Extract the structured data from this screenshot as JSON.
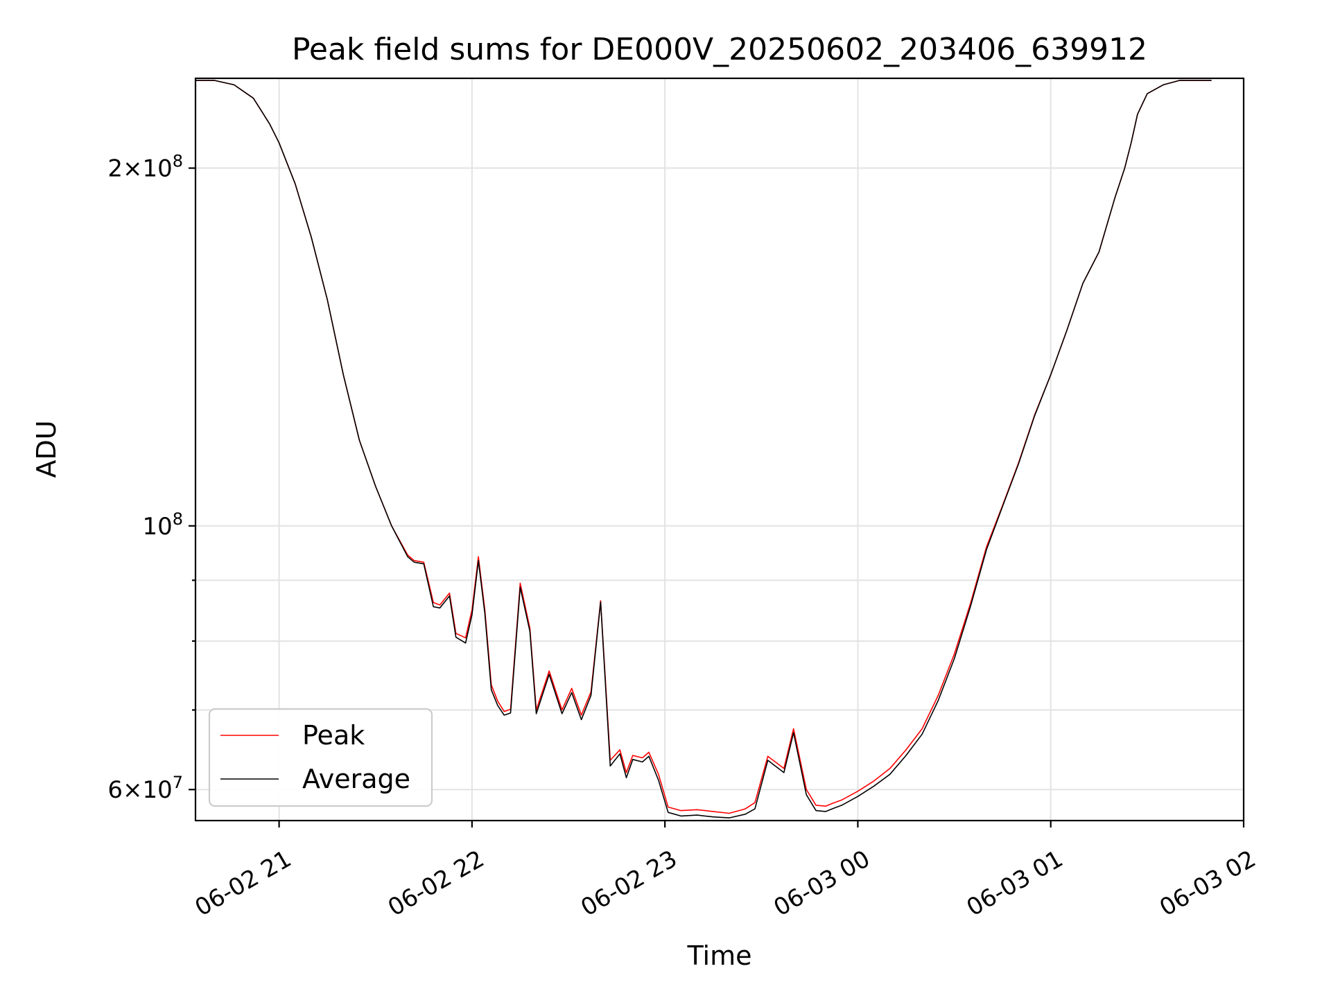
{
  "chart_data": {
    "type": "line",
    "title": "Peak field sums for DE000V_20250602_203406_639912",
    "xlabel": "Time",
    "ylabel": "ADU",
    "yscale": "log",
    "grid": true,
    "legend_position": "lower-left",
    "xlim": [
      "06-02 20:34",
      "06-03 02:00"
    ],
    "ylim": [
      56500000,
      238000000
    ],
    "x_ticks": [
      {
        "value": "06-02 21:00",
        "label": "06-02 21"
      },
      {
        "value": "06-02 22:00",
        "label": "06-02 22"
      },
      {
        "value": "06-02 23:00",
        "label": "06-02 23"
      },
      {
        "value": "06-03 00:00",
        "label": "06-03 00"
      },
      {
        "value": "06-03 01:00",
        "label": "06-03 01"
      },
      {
        "value": "06-03 02:00",
        "label": "06-03 02"
      }
    ],
    "y_ticks_major": [
      {
        "value": 100000000,
        "base": "10",
        "exp": "8",
        "mant": ""
      },
      {
        "value": 200000000,
        "base": "10",
        "exp": "8",
        "mant": "2"
      },
      {
        "value": 60000000,
        "base": "10",
        "exp": "7",
        "mant": "6"
      }
    ],
    "y_ticks_minor": [
      70000000,
      80000000,
      90000000
    ],
    "x": [
      "06-02 20:34",
      "06-02 20:40",
      "06-02 20:46",
      "06-02 20:52",
      "06-02 20:57",
      "06-02 21:00",
      "06-02 21:05",
      "06-02 21:10",
      "06-02 21:15",
      "06-02 21:20",
      "06-02 21:25",
      "06-02 21:30",
      "06-02 21:35",
      "06-02 21:40",
      "06-02 21:42",
      "06-02 21:45",
      "06-02 21:48",
      "06-02 21:50",
      "06-02 21:53",
      "06-02 21:55",
      "06-02 21:58",
      "06-02 22:00",
      "06-02 22:02",
      "06-02 22:04",
      "06-02 22:06",
      "06-02 22:08",
      "06-02 22:10",
      "06-02 22:12",
      "06-02 22:15",
      "06-02 22:18",
      "06-02 22:20",
      "06-02 22:24",
      "06-02 22:28",
      "06-02 22:31",
      "06-02 22:34",
      "06-02 22:37",
      "06-02 22:40",
      "06-02 22:43",
      "06-02 22:46",
      "06-02 22:48",
      "06-02 22:50",
      "06-02 22:53",
      "06-02 22:55",
      "06-02 22:58",
      "06-02 23:01",
      "06-02 23:05",
      "06-02 23:10",
      "06-02 23:15",
      "06-02 23:20",
      "06-02 23:25",
      "06-02 23:28",
      "06-02 23:32",
      "06-02 23:37",
      "06-02 23:40",
      "06-02 23:44",
      "06-02 23:47",
      "06-02 23:50",
      "06-02 23:52",
      "06-02 23:55",
      "06-03 00:00",
      "06-03 00:05",
      "06-03 00:10",
      "06-03 00:15",
      "06-03 00:20",
      "06-03 00:25",
      "06-03 00:30",
      "06-03 00:35",
      "06-03 00:40",
      "06-03 00:45",
      "06-03 00:50",
      "06-03 00:55",
      "06-03 01:00",
      "06-03 01:05",
      "06-03 01:10",
      "06-03 01:15",
      "06-03 01:20",
      "06-03 01:23",
      "06-03 01:25",
      "06-03 01:27",
      "06-03 01:30",
      "06-03 01:35",
      "06-03 01:40",
      "06-03 01:45",
      "06-03 01:50"
    ],
    "series": [
      {
        "name": "Peak",
        "color": "#ff0000",
        "values": [
          237000000,
          237000000,
          235000000,
          229000000,
          218000000,
          210000000,
          194000000,
          175000000,
          155000000,
          134000000,
          118000000,
          108000000,
          100000000,
          94500000,
          93500000,
          93200000,
          86200000,
          85800000,
          87800000,
          81200000,
          80500000,
          85000000,
          94200000,
          85000000,
          73500000,
          71200000,
          69800000,
          70100000,
          89500000,
          82000000,
          70000000,
          75500000,
          70000000,
          73000000,
          69300000,
          72500000,
          86500000,
          63500000,
          64800000,
          62000000,
          64100000,
          63800000,
          64500000,
          61800000,
          58000000,
          57600000,
          57700000,
          57500000,
          57300000,
          57800000,
          58500000,
          64000000,
          62500000,
          67500000,
          60000000,
          58200000,
          58100000,
          58400000,
          58800000,
          59800000,
          61000000,
          62500000,
          64800000,
          67500000,
          72000000,
          78000000,
          86000000,
          96000000,
          104000000,
          113000000,
          124000000,
          134000000,
          146000000,
          160000000,
          170000000,
          189000000,
          200000000,
          210000000,
          222000000,
          231000000,
          235000000,
          237000000,
          237000000,
          237000000
        ]
      },
      {
        "name": "Average",
        "color": "#000000",
        "values": [
          237000000,
          237000000,
          235000000,
          229000000,
          218000000,
          210000000,
          194000000,
          175000000,
          155000000,
          134000000,
          118000000,
          108000000,
          100000000,
          94200000,
          93200000,
          92900000,
          85500000,
          85300000,
          87300000,
          80600000,
          79700000,
          84200000,
          93500000,
          84400000,
          72800000,
          70600000,
          69300000,
          69600000,
          88800000,
          81500000,
          69500000,
          75000000,
          69500000,
          72400000,
          68700000,
          72000000,
          86300000,
          62800000,
          64300000,
          61400000,
          63600000,
          63300000,
          64000000,
          61100000,
          57400000,
          57000000,
          57100000,
          56900000,
          56800000,
          57200000,
          57800000,
          63500000,
          62000000,
          67000000,
          59400000,
          57600000,
          57500000,
          57800000,
          58200000,
          59200000,
          60400000,
          61800000,
          64100000,
          66800000,
          71300000,
          77300000,
          85500000,
          95500000,
          103800000,
          112800000,
          123800000,
          134000000,
          146000000,
          160000000,
          170000000,
          189000000,
          200000000,
          210000000,
          222000000,
          231000000,
          235000000,
          237000000,
          237000000,
          237000000
        ]
      }
    ]
  }
}
